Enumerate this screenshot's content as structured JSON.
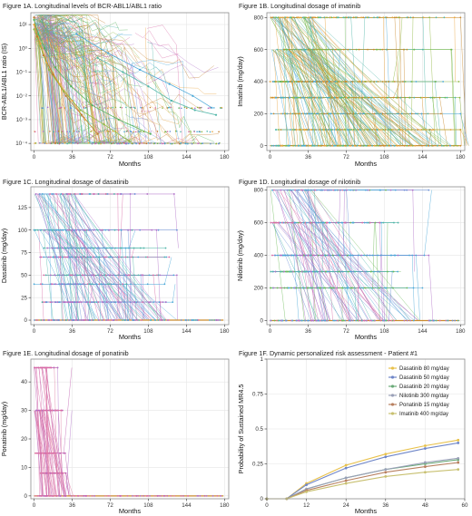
{
  "colors": {
    "axis": "#333333",
    "grid": "#e6e6e6",
    "border": "#8c8c8c",
    "frame": "#ffffff"
  },
  "panels": {
    "a": {
      "title": "Figure 1A. Longitudinal levels of BCR-ABL1/ABL1 ratio",
      "xlabel": "Months",
      "ylabel": "BCR-ABL1/ABL1 ratio (IS)"
    },
    "b": {
      "title": "Figure 1B. Longitudinal dosage of imatinib",
      "xlabel": "Months",
      "ylabel": "Imatinib (mg/day)"
    },
    "c": {
      "title": "Figure 1C. Longitudinal dosage of dasatinib",
      "xlabel": "Months",
      "ylabel": "Dasatinib (mg/day)"
    },
    "d": {
      "title": "Figure 1D. Longitudinal dosage of nilotinib",
      "xlabel": "Months",
      "ylabel": "Nilotinib (mg/day)"
    },
    "e": {
      "title": "Figure 1E. Longitudinal dosage of ponatinib",
      "xlabel": "Months",
      "ylabel": "Ponatinib (mg/day)"
    },
    "f": {
      "title": "Figure 1F. Dynamic personalized risk assessment - Patient #1",
      "xlabel": "Months",
      "ylabel": "Probability of Sustained MR4.5"
    }
  },
  "chart_data": [
    {
      "id": "a",
      "type": "line",
      "title": "Figure 1A. Longitudinal levels of BCR-ABL1/ABL1 ratio",
      "xlabel": "Months",
      "ylabel": "BCR-ABL1/ABL1 ratio (IS)",
      "xlim": [
        -3,
        184
      ],
      "xticks": [
        0,
        36,
        72,
        108,
        144,
        180
      ],
      "ylim": [
        -4.3,
        1.5
      ],
      "yscale": "log10",
      "yticks": [
        -4,
        -3,
        -2,
        -1,
        0,
        1
      ],
      "yticklabels": [
        "10⁻⁴",
        "10⁻³",
        "10⁻²",
        "10⁻¹",
        "10⁰",
        "10¹"
      ],
      "grid": true,
      "palette": [
        "#e8a33c",
        "#c07a2a",
        "#8fb840",
        "#54b35a",
        "#4fb5a8",
        "#4aa8d8",
        "#6a8fd6",
        "#b070c8",
        "#d86aa6"
      ],
      "series_summary": "many overlapping individual patient trajectories",
      "example_series": [
        {
          "x": [
            0,
            6,
            12,
            24,
            36,
            48
          ],
          "y": [
            1.0,
            0.2,
            -0.6,
            -1.5,
            -2.2,
            -3.0
          ]
        },
        {
          "x": [
            0,
            3,
            9,
            18,
            30,
            45,
            60
          ],
          "y": [
            1.3,
            0.5,
            -0.3,
            -1.1,
            -2.0,
            -2.8,
            -3.6
          ]
        },
        {
          "x": [
            0,
            6,
            14,
            28,
            44,
            66,
            90
          ],
          "y": [
            0.8,
            0.1,
            -0.9,
            -1.8,
            -2.6,
            -3.2,
            -3.9
          ]
        },
        {
          "x": [
            0,
            4,
            10,
            20,
            35,
            55,
            80,
            110
          ],
          "y": [
            1.2,
            0.6,
            0.0,
            -0.8,
            -1.6,
            -2.4,
            -3.0,
            -3.6
          ]
        },
        {
          "x": [
            60,
            84,
            108,
            130,
            152,
            172
          ],
          "y": [
            -0.4,
            -1.0,
            -1.6,
            -2.2,
            -2.6,
            -2.8
          ]
        },
        {
          "x": [
            40,
            70,
            100,
            128,
            150,
            168
          ],
          "y": [
            0.6,
            -0.2,
            -0.9,
            -1.5,
            -2.0,
            -2.5
          ]
        }
      ]
    },
    {
      "id": "b",
      "type": "line",
      "title": "Figure 1B. Longitudinal dosage of imatinib",
      "xlabel": "Months",
      "ylabel": "Imatinib (mg/day)",
      "xlim": [
        -3,
        184
      ],
      "xticks": [
        0,
        36,
        72,
        108,
        144,
        180
      ],
      "ylim": [
        -30,
        830
      ],
      "yticks": [
        0,
        200,
        400,
        600,
        800
      ],
      "grid": true,
      "dose_levels": [
        0,
        100,
        200,
        300,
        400,
        600,
        800
      ],
      "palette": [
        "#6aba56",
        "#8fb840",
        "#c98a2e",
        "#e8a33c",
        "#4fb5a8",
        "#4aa8d8"
      ]
    },
    {
      "id": "c",
      "type": "line",
      "title": "Figure 1C. Longitudinal dosage of dasatinib",
      "xlabel": "Months",
      "ylabel": "Dasatinib (mg/day)",
      "xlim": [
        -3,
        184
      ],
      "xticks": [
        0,
        36,
        72,
        108,
        144,
        180
      ],
      "ylim": [
        -5,
        148
      ],
      "yticks": [
        0,
        25,
        50,
        75,
        100,
        125
      ],
      "grid": true,
      "dose_levels": [
        0,
        20,
        40,
        50,
        70,
        80,
        100,
        140
      ],
      "palette": [
        "#4aa8d8",
        "#4fb5a8",
        "#6a8fd6",
        "#d86aa6",
        "#b070c8"
      ]
    },
    {
      "id": "d",
      "type": "line",
      "title": "Figure 1D. Longitudinal dosage of nilotinib",
      "xlabel": "Months",
      "ylabel": "Nilotinib (mg/day)",
      "xlim": [
        -3,
        184
      ],
      "xticks": [
        0,
        36,
        72,
        108,
        144,
        180
      ],
      "ylim": [
        -25,
        820
      ],
      "yticks": [
        0,
        200,
        400,
        600,
        800
      ],
      "grid": true,
      "dose_levels": [
        0,
        200,
        300,
        400,
        600,
        800
      ],
      "palette": [
        "#4aa8d8",
        "#4fb5a8",
        "#6a8fd6",
        "#b070c8",
        "#d86aa6",
        "#6aba56"
      ]
    },
    {
      "id": "e",
      "type": "line",
      "title": "Figure 1E. Longitudinal dosage of ponatinib",
      "xlabel": "Months",
      "ylabel": "Ponatinib (mg/day)",
      "xlim": [
        -3,
        184
      ],
      "xticks": [
        0,
        36,
        72,
        108,
        144,
        180
      ],
      "ylim": [
        -1,
        48
      ],
      "yticks": [
        0,
        10,
        20,
        30,
        40
      ],
      "grid": true,
      "dose_levels": [
        0,
        8,
        15,
        30,
        45
      ],
      "palette": [
        "#d86aa6",
        "#c060b0",
        "#b070c8",
        "#e07aa0"
      ]
    },
    {
      "id": "f",
      "type": "line",
      "title": "Figure 1F. Dynamic personalized risk assessment - Patient #1",
      "xlabel": "Months",
      "ylabel": "Probability of Sustained MR4.5",
      "xlim": [
        0,
        60
      ],
      "xticks": [
        0,
        12,
        24,
        36,
        48,
        60
      ],
      "ylim": [
        0,
        1
      ],
      "yticks": [
        0,
        0.25,
        0.5,
        0.75,
        1
      ],
      "grid": true,
      "legend_position": "top-right",
      "x": [
        0,
        6,
        12,
        24,
        36,
        48,
        58
      ],
      "series": [
        {
          "name": "Dasatinib 80 mg/day",
          "color": "#e8c14a",
          "values": [
            0,
            0,
            0.11,
            0.24,
            0.32,
            0.38,
            0.42
          ]
        },
        {
          "name": "Dasatinib 50 mg/day",
          "color": "#6f86c8",
          "values": [
            0,
            0,
            0.1,
            0.22,
            0.3,
            0.36,
            0.4
          ]
        },
        {
          "name": "Dasatinib 20 mg/day",
          "color": "#6aaa78",
          "values": [
            0,
            0,
            0.07,
            0.15,
            0.21,
            0.25,
            0.28
          ]
        },
        {
          "name": "Nilotinib 300 mg/day",
          "color": "#9aa0b8",
          "values": [
            0,
            0,
            0.07,
            0.15,
            0.21,
            0.26,
            0.29
          ]
        },
        {
          "name": "Ponatinib 15 mg/day",
          "color": "#b88060",
          "values": [
            0,
            0,
            0.06,
            0.13,
            0.19,
            0.23,
            0.26
          ]
        },
        {
          "name": "Imatinib 400 mg/day",
          "color": "#c8c070",
          "values": [
            0,
            0,
            0.05,
            0.11,
            0.16,
            0.19,
            0.21
          ]
        }
      ]
    }
  ]
}
